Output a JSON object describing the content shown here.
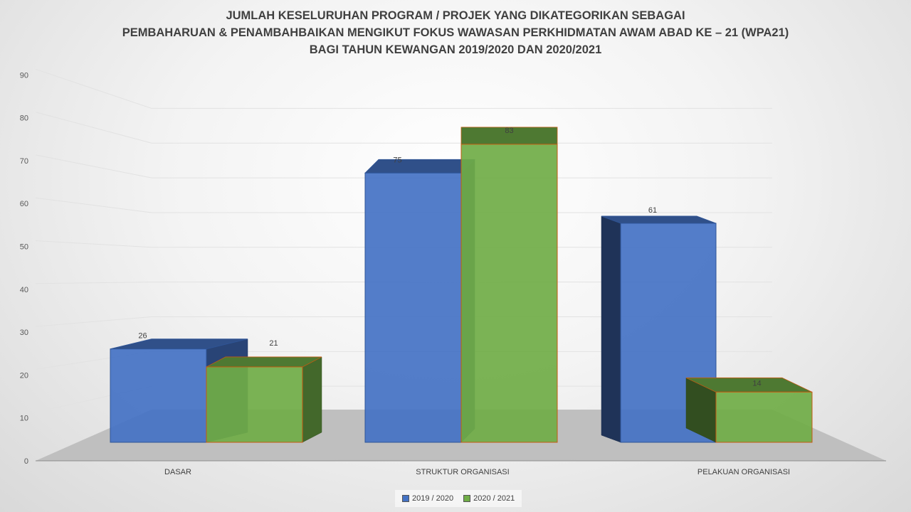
{
  "chart_data": {
    "type": "bar",
    "title_lines": [
      "JUMLAH KESELURUHAN PROGRAM / PROJEK  YANG DIKATEGORIKAN SEBAGAI",
      "PEMBAHARUAN & PENAMBAHBAIKAN MENGIKUT FOKUS WAWASAN PERKHIDMATAN AWAM ABAD KE – 21 (WPA21)",
      "BAGI TAHUN KEWANGAN 2019/2020 DAN 2020/2021"
    ],
    "categories": [
      "DASAR",
      "STRUKTUR ORGANISASI",
      "PELAKUAN ORGANISASI"
    ],
    "series": [
      {
        "name": "2019 / 2020",
        "values": [
          26,
          75,
          61
        ],
        "color": "#4472C4"
      },
      {
        "name": "2020 / 2021",
        "values": [
          21,
          83,
          14
        ],
        "color": "#70AD47"
      }
    ],
    "y_ticks": [
      "0",
      "10",
      "20",
      "30",
      "40",
      "50",
      "60",
      "70",
      "80",
      "90"
    ],
    "ylim": [
      0,
      90
    ],
    "grid": true,
    "legend_position": "bottom",
    "projection": "3d"
  }
}
